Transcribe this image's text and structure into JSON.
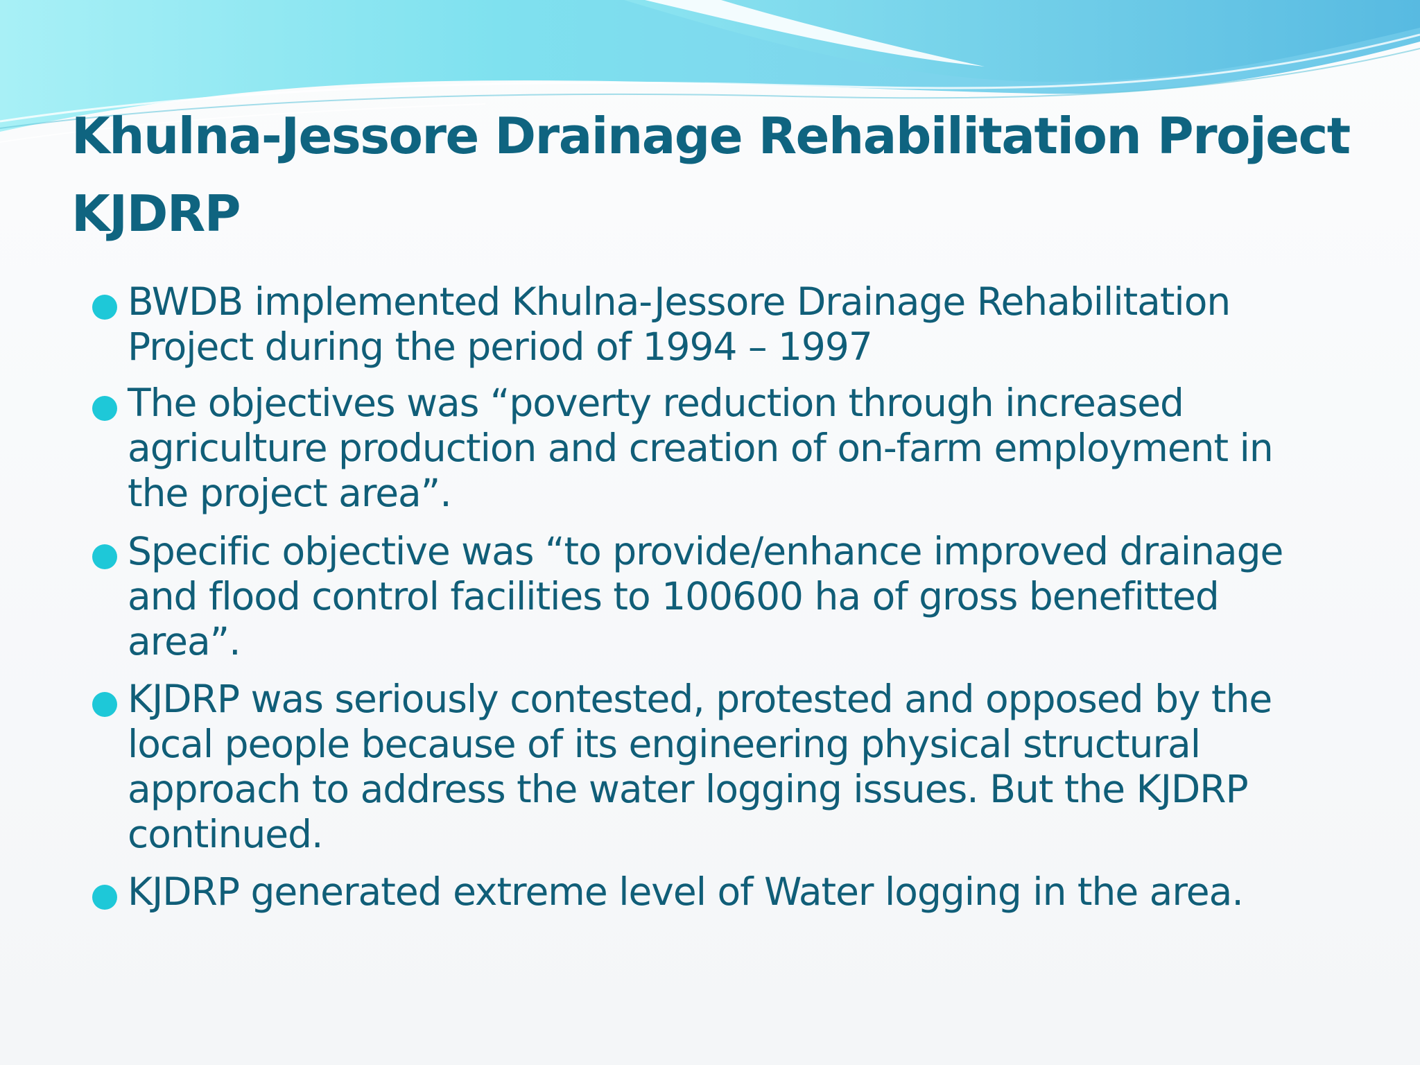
{
  "title": {
    "lines": [
      "Khulna-Jessore Drainage Rehabilitation Project",
      "KJDRP"
    ]
  },
  "bullets": [
    {
      "lines": [
        "BWDB implemented Khulna-Jessore Drainage Rehabilitation",
        "Project during the period of 1994 – 1997"
      ]
    },
    {
      "lines": [
        "The objectives was “poverty reduction through increased",
        "agriculture production and creation of on-farm employment in",
        "the project area”."
      ]
    },
    {
      "lines": [
        "Specific objective was “to provide/enhance improved drainage",
        "and flood control facilities to 100600 ha of gross benefitted",
        "area”."
      ]
    },
    {
      "lines": [
        "KJDRP was seriously contested, protested and opposed by the",
        "local people because of its engineering physical structural",
        "approach to address the water logging issues. But the KJDRP",
        "continued."
      ]
    },
    {
      "lines": [
        "KJDRP generated extreme level of Water logging in the area."
      ]
    }
  ],
  "colors": {
    "title": "#0f6480",
    "text": "#105e78",
    "bullet_dot": "#1ec8d8",
    "wave_light": "#9ee9f3",
    "wave_dark": "#5fbfe2"
  }
}
